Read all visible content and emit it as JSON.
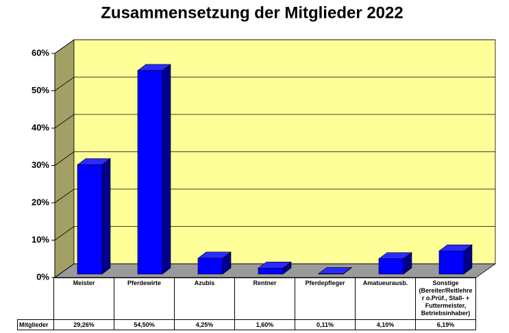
{
  "chart_data": {
    "type": "bar3d",
    "title": "Zusammensetzung der Mitglieder 2022",
    "categories": [
      "Meister",
      "Pferdewirte",
      "Azubis",
      "Rentner",
      "Pferdepfleger",
      "Amatueurausb.",
      "Sonstige (Bereiter/Reitlehrer o.Prüf., Stall- + Futtermeister, Betriebsinhaber)"
    ],
    "series": [
      {
        "name": "Mitglieder",
        "color": "#0000ff",
        "values": [
          29.26,
          54.5,
          4.25,
          1.6,
          0.11,
          4.1,
          6.19
        ],
        "value_labels": [
          "29,26%",
          "54,50%",
          "4,25%",
          "1,60%",
          "0,11%",
          "4,10%",
          "6,19%"
        ]
      }
    ],
    "ylim": [
      0,
      60
    ],
    "yticks": [
      {
        "value": 0,
        "label": "0%"
      },
      {
        "value": 10,
        "label": "10%"
      },
      {
        "value": 20,
        "label": "20%"
      },
      {
        "value": 30,
        "label": "30%"
      },
      {
        "value": 40,
        "label": "40%"
      },
      {
        "value": 50,
        "label": "50%"
      },
      {
        "value": 60,
        "label": "60%"
      }
    ],
    "grid": true
  }
}
